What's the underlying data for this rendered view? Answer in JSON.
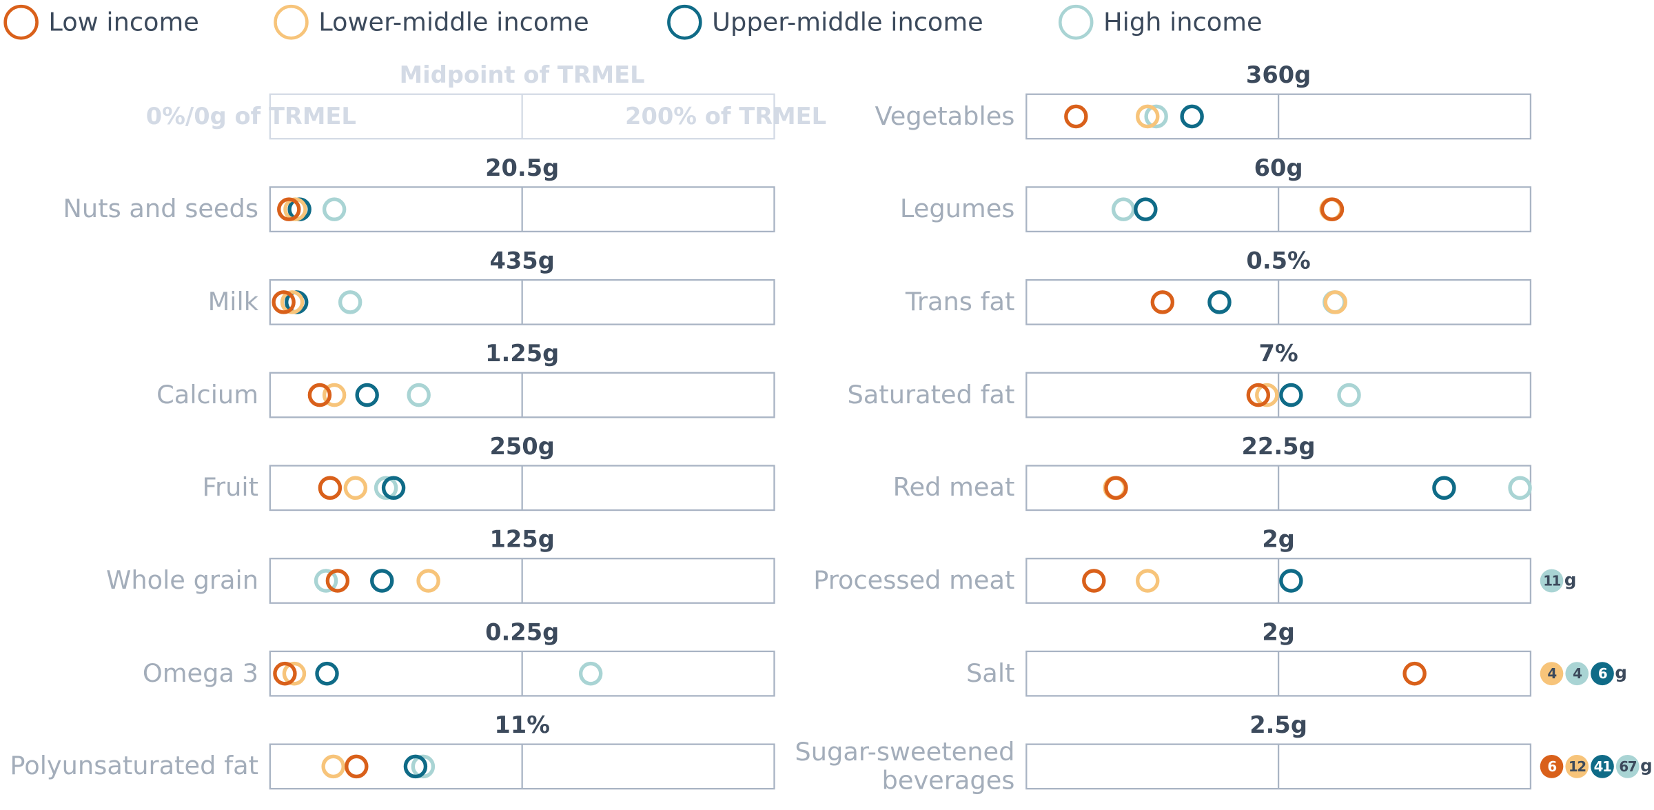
{
  "chart_data": {
    "type": "dot",
    "xlim": [
      0,
      200
    ],
    "series": [
      {
        "name": "Low income",
        "color": "#d9601a",
        "badge_text": "#ffffff"
      },
      {
        "name": "Lower-middle income",
        "color": "#f7c47a",
        "badge_text": "#3c4a5c"
      },
      {
        "name": "Upper-middle income",
        "color": "#0f6b87",
        "badge_text": "#ffffff"
      },
      {
        "name": "High income",
        "color": "#a9d4d4",
        "badge_text": "#3c4a5c"
      }
    ],
    "key": {
      "midpoint": "Midpoint of TRMEL",
      "left": "0%/0g of TRMEL",
      "right": "200% of TRMEL"
    },
    "panels": [
      {
        "label": "Nuts and seeds",
        "target": "20.5g",
        "values": [
          7.5,
          10,
          11.7,
          25.5
        ]
      },
      {
        "label": "Milk",
        "target": "435g",
        "values": [
          5.4,
          8.8,
          10.5,
          31.8
        ]
      },
      {
        "label": "Calcium",
        "target": "1.25g",
        "values": [
          19.7,
          25.5,
          38.5,
          59
        ]
      },
      {
        "label": "Fruit",
        "target": "250g",
        "values": [
          23.8,
          33.9,
          49,
          46
        ]
      },
      {
        "label": "Whole grain",
        "target": "125g",
        "values": [
          26.8,
          62.8,
          44.4,
          22.2
        ]
      },
      {
        "label": "Omega 3",
        "target": "0.25g",
        "values": [
          5.9,
          9.6,
          22.6,
          127.2
        ]
      },
      {
        "label": "Polyunsaturated fat",
        "target": "11%",
        "values": [
          34.3,
          25.1,
          57.7,
          60.7
        ]
      },
      {
        "label": "Vegetables",
        "target": "360g",
        "values": [
          19.7,
          48.1,
          65.7,
          51.5
        ]
      },
      {
        "label": "Legumes",
        "target": "60g",
        "values": [
          121.3,
          120.9,
          47.3,
          38.5
        ]
      },
      {
        "label": "Trans fat",
        "target": "0.5%",
        "values": [
          54,
          122.6,
          76.6,
          122.2
        ]
      },
      {
        "label": "Saturated fat",
        "target": "7%",
        "values": [
          92,
          95.4,
          105,
          128
        ]
      },
      {
        "label": "Red meat",
        "target": "22.5g",
        "values": [
          35.6,
          35.1,
          165.7,
          195.8
        ]
      },
      {
        "label": "Processed meat",
        "target": "2g",
        "values": [
          26.8,
          48.1,
          105,
          null
        ],
        "overflow": [
          null,
          null,
          null,
          11
        ],
        "overflow_unit": "g"
      },
      {
        "label": "Salt",
        "target": "2g",
        "values": [
          154,
          null,
          null,
          null
        ],
        "overflow": [
          null,
          4,
          6,
          4
        ],
        "overflow_unit": "g"
      },
      {
        "label": "Sugar-sweetened beverages",
        "target": "2.5g",
        "values": [
          null,
          null,
          null,
          null
        ],
        "overflow": [
          6,
          12,
          41,
          67
        ],
        "overflow_unit": "g"
      }
    ]
  }
}
